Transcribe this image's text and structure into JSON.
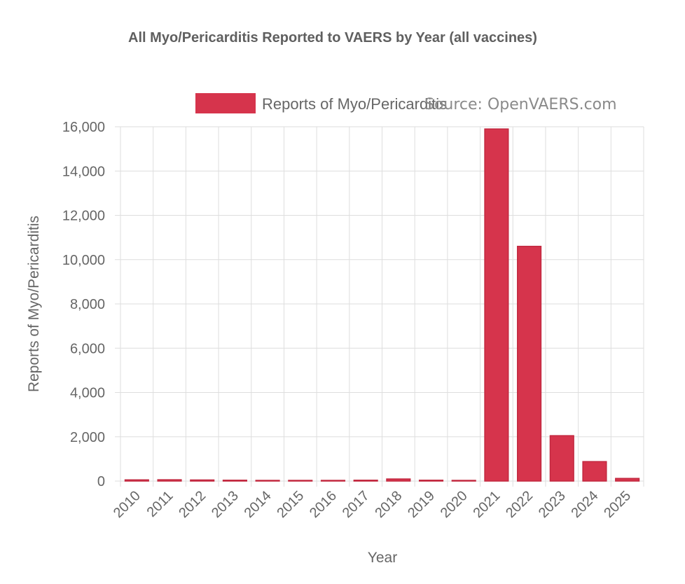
{
  "chart_data": {
    "type": "bar",
    "title": "All Myo/Pericarditis Reported to VAERS by Year (all vaccines)",
    "watermark": "Source: OpenVAERS.com",
    "xlabel": "Year",
    "ylabel": "Reports of Myo/Pericarditis",
    "categories": [
      "2010",
      "2011",
      "2012",
      "2013",
      "2014",
      "2015",
      "2016",
      "2017",
      "2018",
      "2019",
      "2020",
      "2021",
      "2022",
      "2023",
      "2024",
      "2025"
    ],
    "series": [
      {
        "name": "Reports of Myo/Pericarditis",
        "color": "#d6344c",
        "values": [
          55,
          60,
          50,
          40,
          25,
          20,
          10,
          40,
          95,
          40,
          30,
          15900,
          10600,
          2050,
          880,
          120
        ]
      }
    ],
    "ylim": [
      0,
      16000
    ],
    "yticks": [
      0,
      2000,
      4000,
      6000,
      8000,
      10000,
      12000,
      14000,
      16000
    ],
    "ytick_labels": [
      "0",
      "2,000",
      "4,000",
      "6,000",
      "8,000",
      "10,000",
      "12,000",
      "14,000",
      "16,000"
    ],
    "grid": true,
    "legend_position": "top"
  }
}
